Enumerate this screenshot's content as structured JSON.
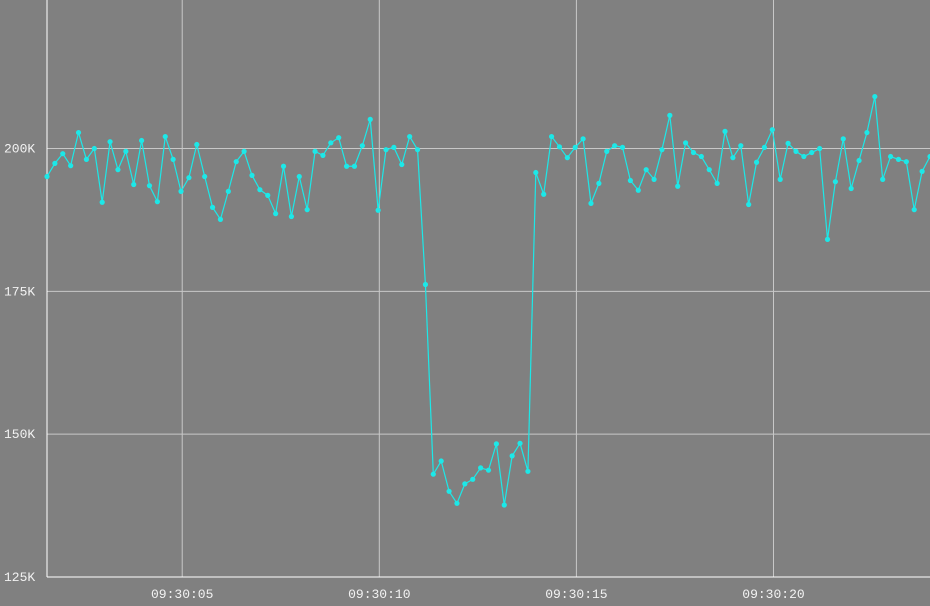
{
  "chart_data": {
    "type": "line",
    "x": [
      1.57,
      1.77,
      1.97,
      2.17,
      2.37,
      2.57,
      2.77,
      2.97,
      3.17,
      3.37,
      3.57,
      3.77,
      3.97,
      4.17,
      4.37,
      4.57,
      4.77,
      4.97,
      5.17,
      5.37,
      5.57,
      5.77,
      5.97,
      6.17,
      6.37,
      6.57,
      6.77,
      6.97,
      7.17,
      7.37,
      7.57,
      7.77,
      7.97,
      8.17,
      8.37,
      8.57,
      8.77,
      8.97,
      9.17,
      9.37,
      9.57,
      9.77,
      9.97,
      10.17,
      10.37,
      10.57,
      10.77,
      10.97,
      11.17,
      11.37,
      11.57,
      11.77,
      11.97,
      12.17,
      12.37,
      12.57,
      12.77,
      12.97,
      13.17,
      13.37,
      13.57,
      13.77,
      13.97,
      14.17,
      14.37,
      14.57,
      14.77,
      14.97,
      15.17,
      15.37,
      15.57,
      15.77,
      15.97,
      16.17,
      16.37,
      16.57,
      16.77,
      16.97,
      17.17,
      17.37,
      17.57,
      17.77,
      17.97,
      18.17,
      18.37,
      18.57,
      18.77,
      18.97,
      19.17,
      19.37,
      19.57,
      19.77,
      19.97,
      20.17,
      20.37,
      20.57,
      20.77,
      20.97,
      21.17,
      21.37,
      21.57,
      21.77,
      21.97,
      22.17,
      22.37,
      22.57,
      22.77,
      22.97,
      23.17,
      23.37,
      23.57,
      23.77,
      23.97
    ],
    "series": [
      {
        "color": "#1ce8e8",
        "values": [
          195100,
          197400,
          199100,
          197000,
          202800,
          198100,
          200000,
          190600,
          201200,
          196300,
          199500,
          193700,
          201400,
          193500,
          190700,
          202100,
          198100,
          192500,
          194900,
          200700,
          195100,
          189700,
          187600,
          192500,
          197700,
          199500,
          195300,
          192800,
          191800,
          188600,
          196900,
          188100,
          195100,
          189300,
          199500,
          198800,
          201000,
          201900,
          196900,
          196900,
          200500,
          205100,
          189200,
          199800,
          200200,
          197200,
          202100,
          199800,
          176200,
          143000,
          145300,
          140000,
          137900,
          141300,
          142100,
          144100,
          143700,
          148300,
          137600,
          146200,
          148400,
          143500,
          195800,
          192000,
          202100,
          200300,
          198400,
          200200,
          201700,
          190400,
          193900,
          199500,
          200500,
          200200,
          194400,
          192700,
          196300,
          194600,
          199800,
          205800,
          193400,
          201000,
          199300,
          198600,
          196300,
          193900,
          203000,
          198400,
          200500,
          190200,
          197600,
          200200,
          203300,
          194600,
          200900,
          199500,
          198600,
          199300,
          200000,
          184100,
          194200,
          201700,
          193000,
          197900,
          202800,
          209100,
          194600,
          198600,
          198100,
          197700,
          189300,
          196000,
          198600
        ]
      }
    ],
    "xlim": [
      1.57,
      23.97
    ],
    "xticks": [
      {
        "value": 5,
        "label": "09:30:05"
      },
      {
        "value": 10,
        "label": "09:30:10"
      },
      {
        "value": 15,
        "label": "09:30:15"
      },
      {
        "value": 20,
        "label": "09:30:20"
      }
    ],
    "ylim": [
      125000,
      226000
    ],
    "yticks": [
      {
        "value": 125000,
        "label": "125K"
      },
      {
        "value": 150000,
        "label": "150K"
      },
      {
        "value": 175000,
        "label": "175K"
      },
      {
        "value": 200000,
        "label": "200K"
      }
    ],
    "grid": true
  }
}
